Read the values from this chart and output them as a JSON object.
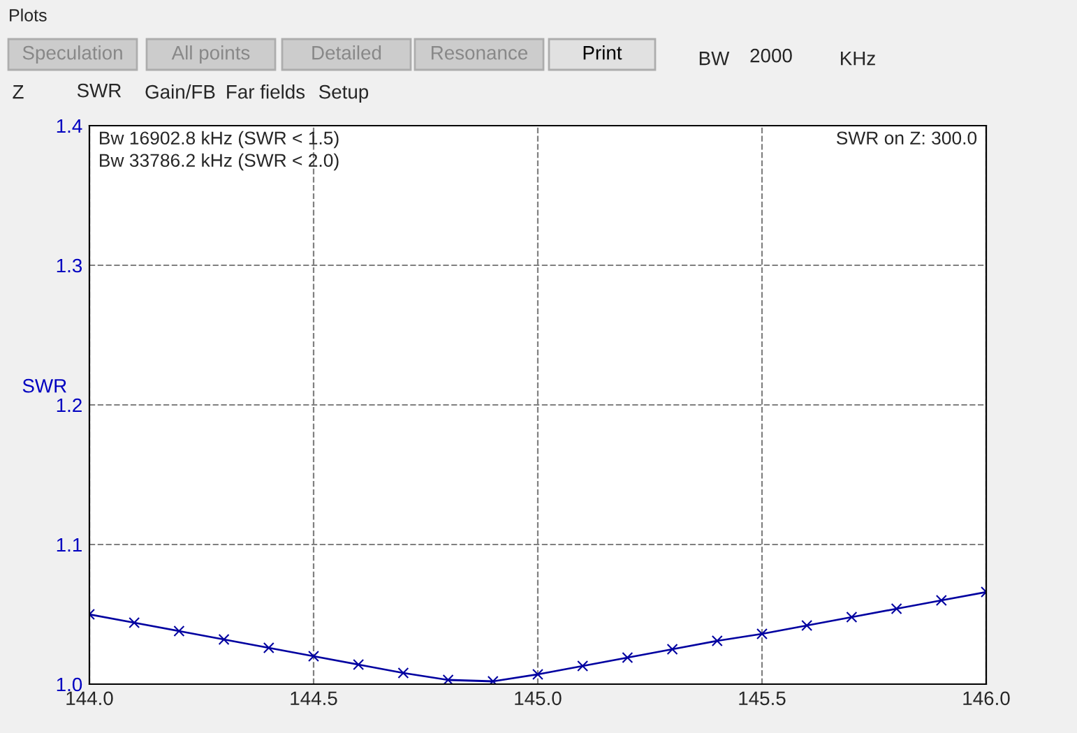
{
  "chart_data": {
    "type": "line",
    "title": "Plots",
    "ylabel": "SWR",
    "x": [
      144.0,
      144.1,
      144.2,
      144.3,
      144.4,
      144.5,
      144.6,
      144.7,
      144.8,
      144.9,
      145.0,
      145.1,
      145.2,
      145.3,
      145.4,
      145.5,
      145.6,
      145.7,
      145.8,
      145.9,
      146.0
    ],
    "series": [
      {
        "color": "#0000a0",
        "values": [
          1.05,
          1.044,
          1.038,
          1.032,
          1.026,
          1.02,
          1.014,
          1.008,
          1.003,
          1.002,
          1.007,
          1.013,
          1.019,
          1.025,
          1.031,
          1.036,
          1.042,
          1.048,
          1.054,
          1.06,
          1.066
        ]
      }
    ],
    "xlim": [
      144.0,
      146.0
    ],
    "ylim": [
      1.0,
      1.4
    ],
    "xticks": [
      {
        "value": 144.0,
        "label": "144.0"
      },
      {
        "value": 144.5,
        "label": "144.5"
      },
      {
        "value": 145.0,
        "label": "145.0"
      },
      {
        "value": 145.5,
        "label": "145.5"
      },
      {
        "value": 146.0,
        "label": "146.0"
      }
    ],
    "yticks": [
      {
        "value": 1.0,
        "label": "1.0"
      },
      {
        "value": 1.1,
        "label": "1.1"
      },
      {
        "value": 1.2,
        "label": "1.2"
      },
      {
        "value": 1.3,
        "label": "1.3"
      },
      {
        "value": 1.4,
        "label": "1.4"
      }
    ],
    "grid": true,
    "marker": "cross",
    "line_style": "solid",
    "legend": false,
    "annotations": [
      "Bw 16902.8 kHz (SWR < 1.5)",
      "Bw 33786.2 kHz (SWR < 2.0)",
      "SWR on Z: 300.0",
      "Speculation",
      "All points",
      "Detailed",
      "Resonance",
      "Print",
      "BW",
      "2000",
      "KHz",
      "Z",
      "SWR",
      "Gain/FB",
      "Far fields",
      "Setup"
    ]
  }
}
